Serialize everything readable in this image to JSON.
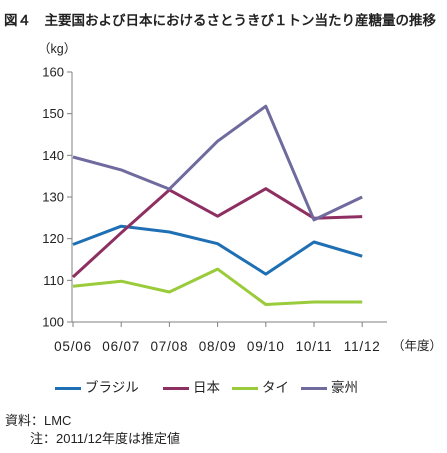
{
  "chart_data": {
    "type": "line",
    "title": "図４　主要国および日本におけるさとうきび１トン当たり産糖量の推移",
    "ylabel": "（kg）",
    "xlabel": "（年度）",
    "categories": [
      "05/06",
      "06/07",
      "07/08",
      "08/09",
      "09/10",
      "10/11",
      "11/12"
    ],
    "ylim": [
      100,
      160
    ],
    "yticks": [
      100,
      110,
      120,
      130,
      140,
      150,
      160
    ],
    "grid": false,
    "legend_position": "bottom",
    "series": [
      {
        "name": "ブラジル",
        "color": "#1f6fb4",
        "values": [
          118.6,
          123.0,
          121.6,
          118.8,
          111.5,
          119.2,
          115.8
        ]
      },
      {
        "name": "日本",
        "color": "#8e2f61",
        "values": [
          110.8,
          121.4,
          131.7,
          125.4,
          132.0,
          124.9,
          125.3
        ]
      },
      {
        "name": "タイ",
        "color": "#9acb3a",
        "values": [
          108.6,
          109.8,
          107.2,
          112.7,
          104.2,
          104.8,
          104.8
        ]
      },
      {
        "name": "豪州",
        "color": "#6f6b9e",
        "values": [
          139.6,
          136.5,
          131.9,
          143.4,
          151.8,
          124.5,
          130.0
        ]
      }
    ]
  },
  "notes": {
    "source": "資料：LMC",
    "estimate": "注：2011/12年度は推定値"
  }
}
